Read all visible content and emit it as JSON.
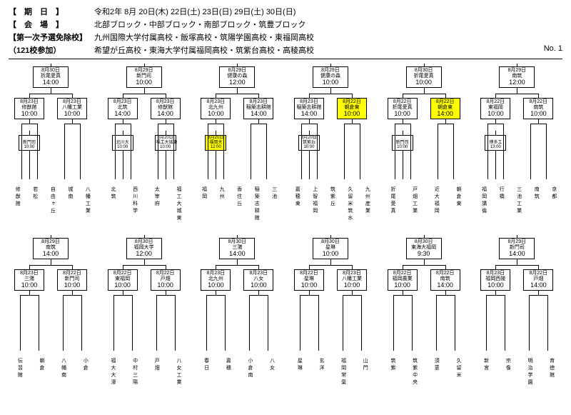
{
  "header": {
    "date_label": "【　期　日　】",
    "date_val": "令和2年 8月 20日(木) 22日(土) 23日(日) 29日(土) 30日(日)",
    "venue_label": "【　会　場　】",
    "venue_val": "北部ブロック・中部ブロック・南部ブロック・筑豊ブロック",
    "exempt_label": "【第一次予選免除校】",
    "exempt_val1": "九州国際大学付属高校・飯塚高校・筑陽学園高校・東福岡高校",
    "count_label": "（121校参加）",
    "exempt_val2": "希望が丘高校・東海大学付属福岡高校・筑紫台高校・高稜高校",
    "page_no": "No. 1"
  },
  "row1": [
    {
      "final": {
        "d": "8月30日",
        "v": "折尾愛真",
        "t": "14:00"
      },
      "semis": [
        {
          "d": "8月23日",
          "v": "修猷館",
          "t": "10:00"
        },
        {
          "d": "8月23日",
          "v": "八幡工業",
          "t": "10:00"
        }
      ],
      "r1": [
        {
          "d": "",
          "v": "新門司",
          "t": "10:00"
        }
      ],
      "teams": [
        "修猷館",
        "若松",
        "自由ヶ丘",
        "城南",
        "八幡工業"
      ]
    },
    {
      "final": {
        "d": "8月29日",
        "v": "新門司",
        "t": "10:00"
      },
      "semis": [
        {
          "d": "8月23日",
          "v": "北筑",
          "t": "14:00"
        },
        {
          "d": "8月23日",
          "v": "修猷館",
          "t": "14:00"
        }
      ],
      "r1": [
        {
          "d": "",
          "v": "北川大",
          "t": "10:00"
        },
        {
          "d": "8月20日",
          "v": "福工大城東",
          "t": "10:00"
        }
      ],
      "teams": [
        "北筑",
        "西川科学",
        "太宰府",
        "福工大城東"
      ]
    },
    {
      "final": {
        "d": "8月29日",
        "v": "健康の森",
        "t": "12:00"
      },
      "semis": [
        {
          "d": "8月23日",
          "v": "北九州",
          "t": "10:00"
        },
        {
          "d": "8月23日",
          "v": "稲築志耕館",
          "t": "14:00"
        }
      ],
      "r1": [
        {
          "d": "8月20日",
          "v": "福岡大",
          "t": "12:00",
          "hl": true
        }
      ],
      "teams": [
        "福岡",
        "九州",
        "香住丘",
        "稲築志耕館",
        "三池"
      ]
    },
    {
      "final": {
        "d": "8月29日",
        "v": "健康の森",
        "t": "10:00"
      },
      "semis": [
        {
          "d": "8月23日",
          "v": "稲築志耕館",
          "t": "14:00"
        },
        {
          "d": "8月22日",
          "v": "朝倉東",
          "t": "10:00",
          "hl": true
        }
      ],
      "r1": [
        {
          "d": "8月20日",
          "v": "筑紫丘",
          "t": "10:00"
        }
      ],
      "teams": [
        "嘉穂東",
        "上智福岡",
        "筑紫丘",
        "久留米筑水",
        "九州産業"
      ]
    },
    {
      "final": {
        "d": "8月30日",
        "v": "折尾愛真",
        "t": "10:00"
      },
      "semis": [
        {
          "d": "8月22日",
          "v": "折尾愛真",
          "t": "10:00"
        },
        {
          "d": "8月22日",
          "v": "朝倉東",
          "t": "14:00",
          "hl": true
        }
      ],
      "r1": [
        {
          "d": "",
          "v": "新門司",
          "t": "10:00"
        }
      ],
      "teams": [
        "折尾愛真",
        "戸畑工業",
        "近大福岡",
        "朝倉東"
      ]
    },
    {
      "final": {
        "d": "8月29日",
        "v": "南筑",
        "t": "12:00"
      },
      "semis": [
        {
          "d": "8月22日",
          "v": "東福岡",
          "t": "10:00"
        },
        {
          "d": "8月22日",
          "v": "南筑",
          "t": "10:00"
        }
      ],
      "r1": [
        {
          "d": "",
          "v": "博多工",
          "t": "13:00"
        }
      ],
      "teams": [
        "福岡講倫",
        "行橋",
        "三池工業",
        "南筑",
        "京都"
      ]
    }
  ],
  "row2": [
    {
      "final": {
        "d": "8月29日",
        "v": "南筑",
        "t": "14:00"
      },
      "semis": [
        {
          "d": "8月23日",
          "v": "三潴",
          "t": "10:00"
        },
        {
          "d": "8月22日",
          "v": "新門司",
          "t": "10:00"
        }
      ],
      "teams": [
        "伝習館",
        "朝倉",
        "八幡南",
        "小倉"
      ]
    },
    {
      "final": {
        "d": "8月30日",
        "v": "福岡大学",
        "t": "12:00"
      },
      "semis": [
        {
          "d": "8月22日",
          "v": "東福岡",
          "t": "10:00"
        },
        {
          "d": "8月22日",
          "v": "戸畑",
          "t": "10:00"
        }
      ],
      "teams": [
        "福大大濠",
        "中村三陽",
        "戸畑",
        "八女工業"
      ]
    },
    {
      "final": {
        "d": "8月30日",
        "v": "三潴",
        "t": "14:00"
      },
      "semis": [
        {
          "d": "8月23日",
          "v": "北九州",
          "t": "10:00"
        },
        {
          "d": "8月23日",
          "v": "八女",
          "t": "10:00"
        }
      ],
      "teams": [
        "春日",
        "嘉穗",
        "小倉南",
        "八女"
      ]
    },
    {
      "final": {
        "d": "8月30日",
        "v": "星琳",
        "t": "10:00"
      },
      "semis": [
        {
          "d": "8月22日",
          "v": "星琳",
          "t": "10:00"
        },
        {
          "d": "8月23日",
          "v": "八幡工業",
          "t": "10:00"
        }
      ],
      "teams": [
        "星琳",
        "玄洋",
        "福岡常葉",
        "山門"
      ]
    },
    {
      "final": {
        "d": "8月30日",
        "v": "東海大福岡",
        "t": "9:30"
      },
      "semis": [
        {
          "d": "8月22日",
          "v": "福岡農業",
          "t": "10:00"
        },
        {
          "d": "8月22日",
          "v": "南筑",
          "t": "14:00"
        }
      ],
      "teams": [
        "筑紫",
        "筑紫中央",
        "須恵",
        "久留米"
      ]
    },
    {
      "final": {
        "d": "8月29日",
        "v": "新門司",
        "t": "14:00"
      },
      "semis": [
        {
          "d": "8月23日",
          "v": "福岡西陵",
          "t": "10:00"
        },
        {
          "d": "8月22日",
          "v": "戸畑",
          "t": "14:00"
        }
      ],
      "teams": [
        "新宮",
        "宗像",
        "明治学園",
        "育徳館"
      ]
    }
  ]
}
